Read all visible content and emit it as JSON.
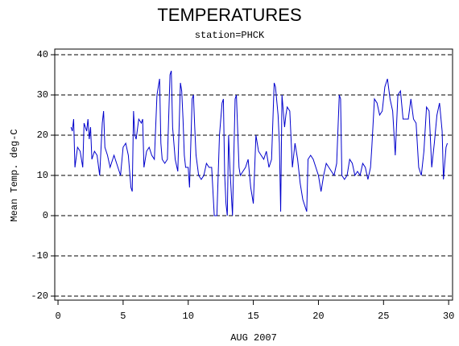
{
  "chart_data": {
    "type": "line",
    "title": "TEMPERATURES",
    "subtitle": "station=PHCK",
    "x_label": "AUG 2007",
    "y_label": "Mean Temp. deg-C",
    "xlim": [
      -0.25,
      30.3
    ],
    "xticks": [
      0,
      5,
      10,
      15,
      20,
      25,
      30
    ],
    "ylim": [
      -21,
      41.4
    ],
    "yticks": [
      -20,
      -10,
      0,
      10,
      20,
      30,
      40
    ],
    "grid": true,
    "x": [
      1.0,
      1.1,
      1.2,
      1.3,
      1.5,
      1.7,
      1.9,
      2.0,
      2.2,
      2.3,
      2.4,
      2.5,
      2.6,
      2.8,
      3.0,
      3.2,
      3.4,
      3.5,
      3.6,
      3.8,
      4.0,
      4.3,
      4.6,
      4.8,
      5.0,
      5.2,
      5.4,
      5.6,
      5.7,
      5.8,
      5.9,
      6.0,
      6.2,
      6.4,
      6.5,
      6.6,
      6.8,
      7.0,
      7.2,
      7.4,
      7.6,
      7.8,
      7.9,
      8.0,
      8.2,
      8.4,
      8.6,
      8.7,
      8.8,
      9.0,
      9.2,
      9.4,
      9.5,
      9.6,
      9.7,
      9.8,
      10.0,
      10.1,
      10.3,
      10.4,
      10.5,
      10.6,
      10.8,
      11.0,
      11.2,
      11.4,
      11.6,
      11.8,
      12.0,
      12.2,
      12.4,
      12.6,
      12.7,
      12.8,
      12.9,
      13.0,
      13.1,
      13.2,
      13.4,
      13.6,
      13.7,
      13.9,
      14.0,
      14.2,
      14.4,
      14.6,
      14.8,
      15.0,
      15.2,
      15.4,
      15.6,
      15.8,
      16.0,
      16.2,
      16.4,
      16.6,
      16.7,
      16.9,
      17.0,
      17.1,
      17.2,
      17.4,
      17.5,
      17.6,
      17.8,
      18.0,
      18.2,
      18.4,
      18.6,
      18.8,
      19.0,
      19.1,
      19.2,
      19.4,
      19.6,
      19.8,
      20.0,
      20.2,
      20.4,
      20.6,
      20.8,
      21.0,
      21.2,
      21.4,
      21.6,
      21.7,
      21.8,
      22.0,
      22.2,
      22.4,
      22.6,
      22.8,
      23.0,
      23.2,
      23.4,
      23.6,
      23.8,
      24.0,
      24.1,
      24.3,
      24.5,
      24.7,
      24.9,
      25.1,
      25.3,
      25.5,
      25.7,
      25.9,
      26.1,
      26.3,
      26.5,
      26.7,
      26.9,
      27.1,
      27.3,
      27.5,
      27.7,
      27.9,
      28.1,
      28.3,
      28.5,
      28.7,
      28.9,
      29.1,
      29.3,
      29.5,
      29.6,
      29.8,
      29.9
    ],
    "series": [
      {
        "color": "#0000cc",
        "values": [
          22,
          21,
          24,
          12,
          17,
          16,
          12,
          23,
          21,
          24,
          19,
          22,
          14,
          16,
          15,
          10,
          23,
          26,
          17,
          15,
          12,
          15,
          12,
          10,
          17,
          18,
          15,
          7,
          6,
          26,
          20,
          19,
          24,
          23,
          24,
          12,
          16,
          17,
          15,
          14,
          30,
          34,
          18,
          14,
          13,
          14,
          35,
          36,
          22,
          14,
          11,
          33,
          31,
          24,
          15,
          12,
          12,
          7,
          29,
          30,
          22,
          15,
          10,
          9,
          10,
          13,
          12,
          12,
          0,
          0,
          20,
          28,
          29,
          10,
          3,
          0,
          20,
          12,
          0,
          29,
          30,
          12,
          10,
          11,
          12,
          14,
          7,
          3,
          20,
          16,
          15,
          14,
          16,
          12,
          14,
          33,
          32,
          25,
          18,
          1,
          30,
          22,
          25,
          27,
          26,
          12,
          18,
          14,
          8,
          4,
          2,
          1,
          14,
          15,
          14,
          12,
          10,
          6,
          10,
          13,
          12,
          11,
          10,
          13,
          30,
          29,
          10,
          9,
          10,
          14,
          13,
          10,
          11,
          10,
          13,
          12,
          9,
          12,
          17,
          29,
          28,
          25,
          26,
          32,
          34,
          29,
          26,
          15,
          30,
          31,
          24,
          24,
          24,
          29,
          24,
          23,
          12,
          10,
          16,
          27,
          26,
          12,
          18,
          25,
          28,
          21,
          9,
          17,
          18
        ]
      }
    ]
  }
}
